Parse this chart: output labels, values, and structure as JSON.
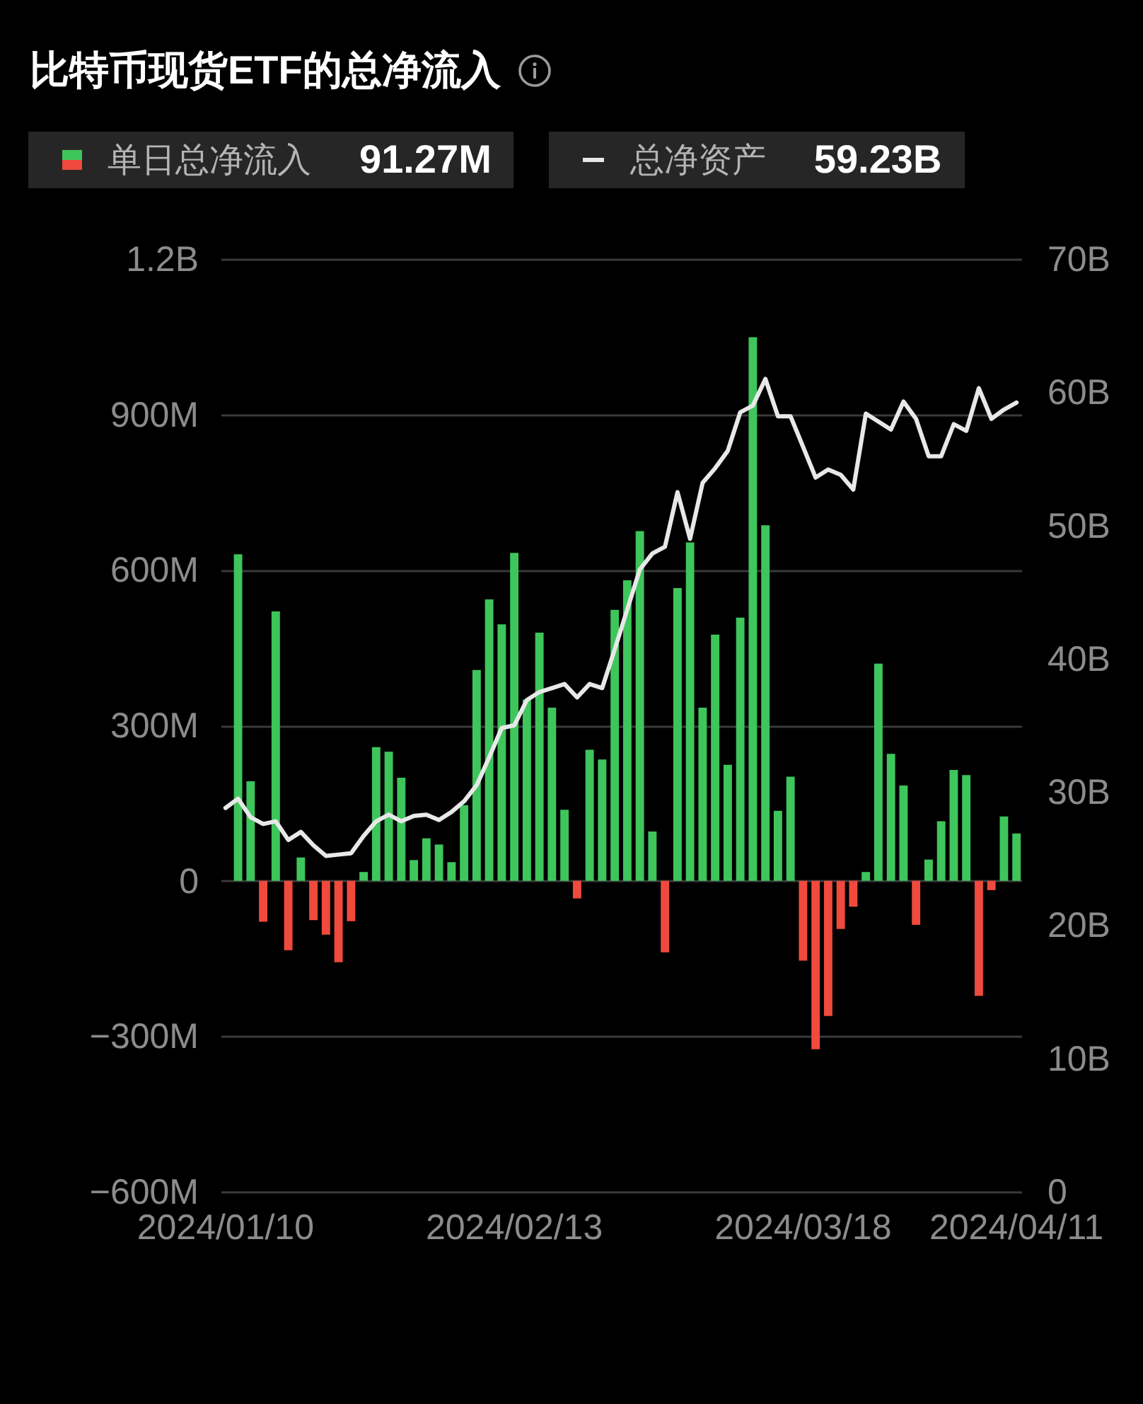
{
  "chart_data": {
    "type": "bar",
    "title": "比特币现货ETF的总净流入",
    "categories": [
      "2024/01/10",
      null,
      null,
      null,
      null,
      null,
      null,
      null,
      null,
      null,
      null,
      null,
      null,
      null,
      null,
      null,
      null,
      null,
      null,
      null,
      null,
      null,
      null,
      "2024/02/13",
      null,
      null,
      null,
      null,
      null,
      null,
      null,
      null,
      null,
      null,
      null,
      null,
      null,
      null,
      null,
      null,
      null,
      null,
      null,
      null,
      null,
      null,
      "2024/03/18",
      null,
      null,
      null,
      null,
      null,
      null,
      null,
      null,
      null,
      null,
      null,
      null,
      null,
      null,
      null,
      null,
      "2024/04/11"
    ],
    "series": [
      {
        "name": "单日总净流入",
        "values": [
          null,
          630000000,
          192000000,
          -79000000,
          520000000,
          -134000000,
          45000000,
          -76000000,
          -104000000,
          -157000000,
          -78000000,
          17000000,
          258000000,
          249000000,
          199000000,
          40000000,
          82000000,
          70000000,
          36000000,
          146000000,
          407000000,
          543000000,
          495000000,
          633000000,
          350000000,
          479000000,
          334000000,
          137000000,
          -34000000,
          253000000,
          234000000,
          523000000,
          580000000,
          675000000,
          95000000,
          -138000000,
          565000000,
          653000000,
          334000000,
          475000000,
          224000000,
          508000000,
          1049000000,
          686000000,
          135000000,
          201000000,
          -154000000,
          -325000000,
          -261000000,
          -93000000,
          -50000000,
          17000000,
          419000000,
          245000000,
          184000000,
          -85000000,
          41000000,
          115000000,
          214000000,
          204000000,
          -222000000,
          -18000000,
          124000000,
          91270000
        ],
        "colors": [
          null,
          "#3ec55b",
          "#3ec55b",
          "#ef4a3d",
          "#3ec55b",
          "#ef4a3d",
          "#3ec55b",
          "#ef4a3d",
          "#ef4a3d",
          "#ef4a3d",
          "#ef4a3d",
          "#3ec55b",
          "#3ec55b",
          "#3ec55b",
          "#3ec55b",
          "#3ec55b",
          "#3ec55b",
          "#3ec55b",
          "#3ec55b",
          "#3ec55b",
          "#3ec55b",
          "#3ec55b",
          "#3ec55b",
          "#3ec55b",
          "#3ec55b",
          "#3ec55b",
          "#3ec55b",
          "#3ec55b",
          "#ef4a3d",
          "#3ec55b",
          "#3ec55b",
          "#3ec55b",
          "#3ec55b",
          "#3ec55b",
          "#3ec55b",
          "#ef4a3d",
          "#3ec55b",
          "#3ec55b",
          "#3ec55b",
          "#3ec55b",
          "#3ec55b",
          "#3ec55b",
          "#3ec55b",
          "#3ec55b",
          "#3ec55b",
          "#3ec55b",
          "#ef4a3d",
          "#ef4a3d",
          "#ef4a3d",
          "#ef4a3d",
          "#ef4a3d",
          "#3ec55b",
          "#3ec55b",
          "#3ec55b",
          "#3ec55b",
          "#ef4a3d",
          "#3ec55b",
          "#3ec55b",
          "#3ec55b",
          "#3ec55b",
          "#ef4a3d",
          "#ef4a3d",
          "#3ec55b",
          "#3ec55b"
        ]
      },
      {
        "name": "总净资产",
        "type": "line",
        "axis": "y2",
        "color": "#e8e8e8",
        "values": [
          28800000000,
          29500000000,
          28100000000,
          27600000000,
          27800000000,
          26400000000,
          27000000000,
          26000000000,
          25200000000,
          25300000000,
          25400000000,
          26700000000,
          27800000000,
          28300000000,
          27800000000,
          28200000000,
          28300000000,
          27900000000,
          28500000000,
          29300000000,
          30500000000,
          32600000000,
          34800000000,
          35000000000,
          36900000000,
          37500000000,
          37800000000,
          38100000000,
          37100000000,
          38100000000,
          37800000000,
          40700000000,
          43700000000,
          46700000000,
          47900000000,
          48400000000,
          52500000000,
          49000000000,
          53200000000,
          54300000000,
          55600000000,
          58500000000,
          59000000000,
          61000000000,
          58200000000,
          58200000000,
          55900000000,
          53600000000,
          54200000000,
          53800000000,
          52700000000,
          58400000000,
          57800000000,
          57200000000,
          59300000000,
          58000000000,
          55200000000,
          55200000000,
          57600000000,
          57100000000,
          60300000000,
          58000000000,
          58700000000,
          59230000000
        ]
      }
    ],
    "ylim": [
      -600000000,
      1200000000
    ],
    "yticks": [
      {
        "value": -600000000,
        "label": "−600M"
      },
      {
        "value": -300000000,
        "label": "−300M"
      },
      0,
      {
        "value": 300000000,
        "label": "300M"
      },
      {
        "value": 600000000,
        "label": "600M"
      },
      {
        "value": 900000000,
        "label": "900M"
      },
      {
        "value": 1200000000,
        "label": "1.2B"
      }
    ],
    "y2lim": [
      0,
      70000000000
    ],
    "y2ticks": [
      0,
      {
        "value": 10000000000,
        "label": "10B"
      },
      {
        "value": 20000000000,
        "label": "20B"
      },
      {
        "value": 30000000000,
        "label": "30B"
      },
      {
        "value": 40000000000,
        "label": "40B"
      },
      {
        "value": 50000000000,
        "label": "50B"
      },
      {
        "value": 60000000000,
        "label": "60B"
      },
      {
        "value": 70000000000,
        "label": "70B"
      }
    ],
    "grid": "y",
    "legend": "top left",
    "annotations": [
      "91.27M",
      "59.23B"
    ]
  }
}
